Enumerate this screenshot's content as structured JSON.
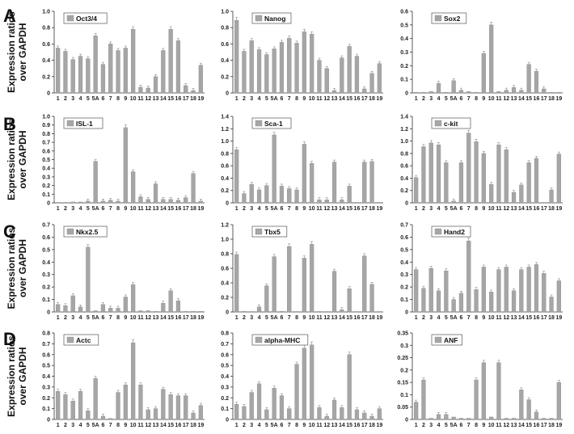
{
  "y_axis_label": [
    "Expression ratios",
    "over GAPDH"
  ],
  "row_letters": [
    "A",
    "B",
    "C",
    "D"
  ],
  "chart_data": [
    {
      "type": "bar",
      "title": "Oct3/4",
      "ylim": [
        0,
        1.0
      ],
      "yticks": [
        "0",
        "0.2",
        "0.4",
        "0.6",
        "0.8",
        "1.0"
      ],
      "categories": [
        "1",
        "2",
        "3",
        "4",
        "5",
        "5A",
        "6",
        "7",
        "8",
        "9",
        "10",
        "11",
        "12",
        "13",
        "14",
        "15",
        "16",
        "17",
        "18",
        "19"
      ],
      "values": [
        0.55,
        0.51,
        0.41,
        0.45,
        0.42,
        0.7,
        0.35,
        0.6,
        0.52,
        0.55,
        0.78,
        0.07,
        0.06,
        0.2,
        0.52,
        0.78,
        0.64,
        0.09,
        0.03,
        0.34
      ]
    },
    {
      "type": "bar",
      "title": "Nanog",
      "ylim": [
        0,
        1.0
      ],
      "yticks": [
        "0",
        "0.2",
        "0.4",
        "0.6",
        "0.8",
        "1.0"
      ],
      "categories": [
        "1",
        "2",
        "3",
        "4",
        "5",
        "5A",
        "6",
        "7",
        "8",
        "9",
        "10",
        "11",
        "12",
        "13",
        "14",
        "15",
        "16",
        "17",
        "18",
        "19"
      ],
      "values": [
        0.89,
        0.51,
        0.64,
        0.53,
        0.47,
        0.54,
        0.62,
        0.67,
        0.61,
        0.75,
        0.72,
        0.4,
        0.3,
        0.03,
        0.43,
        0.57,
        0.45,
        0.05,
        0.24,
        0.36
      ]
    },
    {
      "type": "bar",
      "title": "Sox2",
      "ylim": [
        0,
        0.6
      ],
      "yticks": [
        "0",
        "0.1",
        "0.2",
        "0.3",
        "0.4",
        "0.5",
        "0.6"
      ],
      "categories": [
        "1",
        "2",
        "3",
        "4",
        "5",
        "5A",
        "6",
        "7",
        "8",
        "9",
        "10",
        "11",
        "12",
        "13",
        "14",
        "15",
        "16",
        "17",
        "18",
        "19"
      ],
      "values": [
        0.005,
        0.005,
        0.01,
        0.07,
        0.005,
        0.09,
        0.02,
        0.01,
        0.005,
        0.29,
        0.5,
        0.01,
        0.02,
        0.04,
        0.02,
        0.21,
        0.16,
        0.03,
        0.005,
        0.005
      ]
    },
    {
      "type": "bar",
      "title": "ISL-1",
      "ylim": [
        0,
        1.0
      ],
      "yticks": [
        "0",
        "0.1",
        "0.2",
        "0.3",
        "0.4",
        "0.5",
        "0.6",
        "0.7",
        "0.8",
        "0.9",
        "1.0"
      ],
      "categories": [
        "1",
        "2",
        "3",
        "4",
        "5",
        "5A",
        "6",
        "7",
        "8",
        "9",
        "10",
        "11",
        "12",
        "13",
        "14",
        "15",
        "16",
        "17",
        "18",
        "19"
      ],
      "values": [
        0.005,
        0.005,
        0.01,
        0.01,
        0.02,
        0.48,
        0.02,
        0.03,
        0.02,
        0.87,
        0.36,
        0.07,
        0.04,
        0.22,
        0.04,
        0.04,
        0.03,
        0.06,
        0.34,
        0.02
      ]
    },
    {
      "type": "bar",
      "title": "Sca-1",
      "ylim": [
        0,
        1.4
      ],
      "yticks": [
        "0",
        "0.2",
        "0.4",
        "0.6",
        "0.8",
        "1.0",
        "1.2",
        "1.4"
      ],
      "categories": [
        "1",
        "2",
        "3",
        "4",
        "5",
        "5A",
        "6",
        "7",
        "8",
        "9",
        "10",
        "11",
        "12",
        "13",
        "14",
        "15",
        "16",
        "17",
        "18",
        "19"
      ],
      "values": [
        0.86,
        0.15,
        0.3,
        0.21,
        0.28,
        1.1,
        0.27,
        0.23,
        0.21,
        0.95,
        0.64,
        0.05,
        0.05,
        0.66,
        0.05,
        0.27,
        0.005,
        0.66,
        0.67,
        0.005
      ]
    },
    {
      "type": "bar",
      "title": "c-kit",
      "ylim": [
        0,
        1.4
      ],
      "yticks": [
        "0",
        "0.2",
        "0.4",
        "0.6",
        "0.8",
        "1.0",
        "1.2",
        "1.4"
      ],
      "categories": [
        "1",
        "2",
        "3",
        "4",
        "5",
        "5A",
        "6",
        "7",
        "8",
        "9",
        "10",
        "11",
        "12",
        "13",
        "14",
        "15",
        "16",
        "17",
        "18",
        "19"
      ],
      "values": [
        0.41,
        0.91,
        0.97,
        0.94,
        0.65,
        0.03,
        0.65,
        1.13,
        0.99,
        0.8,
        0.3,
        0.94,
        0.86,
        0.17,
        0.29,
        0.65,
        0.72,
        0.005,
        0.21,
        0.79
      ]
    },
    {
      "type": "bar",
      "title": "Nkx2.5",
      "ylim": [
        0,
        0.7
      ],
      "yticks": [
        "0",
        "0.1",
        "0.2",
        "0.3",
        "0.4",
        "0.5",
        "0.6",
        "0.7"
      ],
      "categories": [
        "1",
        "2",
        "3",
        "4",
        "5",
        "5A",
        "6",
        "7",
        "8",
        "9",
        "10",
        "11",
        "12",
        "13",
        "14",
        "15",
        "16",
        "17",
        "18",
        "19"
      ],
      "values": [
        0.06,
        0.05,
        0.13,
        0.04,
        0.52,
        0.01,
        0.06,
        0.03,
        0.03,
        0.12,
        0.22,
        0.01,
        0.01,
        0.005,
        0.07,
        0.17,
        0.09,
        0.005,
        0.005,
        0.005
      ]
    },
    {
      "type": "bar",
      "title": "Tbx5",
      "ylim": [
        0,
        1.2
      ],
      "yticks": [
        "0",
        "0.2",
        "0.4",
        "0.6",
        "0.8",
        "1.0",
        "1.2"
      ],
      "categories": [
        "1",
        "2",
        "3",
        "4",
        "5",
        "5A",
        "6",
        "7",
        "8",
        "9",
        "10",
        "11",
        "12",
        "13",
        "14",
        "15",
        "16",
        "17",
        "18",
        "19"
      ],
      "values": [
        0.79,
        0.01,
        0.005,
        0.07,
        0.36,
        0.76,
        0.01,
        0.9,
        0.005,
        0.74,
        0.93,
        0.005,
        0.005,
        0.56,
        0.03,
        0.32,
        0.005,
        0.77,
        0.38,
        0.005
      ]
    },
    {
      "type": "bar",
      "title": "Hand2",
      "ylim": [
        0,
        0.7
      ],
      "yticks": [
        "0",
        "0.1",
        "0.2",
        "0.3",
        "0.4",
        "0.5",
        "0.6",
        "0.7"
      ],
      "categories": [
        "1",
        "2",
        "3",
        "4",
        "5",
        "5A",
        "6",
        "7",
        "8",
        "9",
        "10",
        "11",
        "12",
        "13",
        "14",
        "15",
        "16",
        "17",
        "18",
        "19"
      ],
      "values": [
        0.34,
        0.19,
        0.35,
        0.17,
        0.33,
        0.1,
        0.15,
        0.57,
        0.18,
        0.36,
        0.16,
        0.34,
        0.36,
        0.17,
        0.34,
        0.36,
        0.38,
        0.31,
        0.12,
        0.25
      ]
    },
    {
      "type": "bar",
      "title": "Actc",
      "ylim": [
        0,
        0.8
      ],
      "yticks": [
        "0",
        "0.1",
        "0.2",
        "0.3",
        "0.4",
        "0.5",
        "0.6",
        "0.7",
        "0.8"
      ],
      "categories": [
        "1",
        "2",
        "3",
        "4",
        "5",
        "5A",
        "6",
        "7",
        "8",
        "9",
        "10",
        "11",
        "12",
        "13",
        "14",
        "15",
        "16",
        "17",
        "18",
        "19"
      ],
      "values": [
        0.26,
        0.23,
        0.17,
        0.26,
        0.08,
        0.38,
        0.03,
        0.01,
        0.25,
        0.32,
        0.71,
        0.32,
        0.09,
        0.1,
        0.28,
        0.23,
        0.22,
        0.22,
        0.06,
        0.13
      ]
    },
    {
      "type": "bar",
      "title": "alpha-MHC",
      "ylim": [
        0,
        0.8
      ],
      "yticks": [
        "0",
        "0.1",
        "0.2",
        "0.3",
        "0.4",
        "0.5",
        "0.6",
        "0.7",
        "0.8"
      ],
      "categories": [
        "1",
        "2",
        "3",
        "4",
        "5",
        "5A",
        "6",
        "7",
        "8",
        "9",
        "10",
        "11",
        "12",
        "13",
        "14",
        "15",
        "16",
        "17",
        "18",
        "19"
      ],
      "values": [
        0.14,
        0.12,
        0.25,
        0.33,
        0.09,
        0.29,
        0.22,
        0.1,
        0.51,
        0.66,
        0.69,
        0.11,
        0.03,
        0.18,
        0.11,
        0.6,
        0.09,
        0.06,
        0.03,
        0.1
      ]
    },
    {
      "type": "bar",
      "title": "ANF",
      "ylim": [
        0,
        0.35
      ],
      "yticks": [
        "0",
        "0.05",
        "0.1",
        "0.15",
        "0.2",
        "0.25",
        "0.3",
        "0.35"
      ],
      "categories": [
        "1",
        "2",
        "3",
        "4",
        "5",
        "5A",
        "6",
        "7",
        "8",
        "9",
        "10",
        "11",
        "12",
        "13",
        "14",
        "15",
        "16",
        "17",
        "18",
        "19"
      ],
      "values": [
        0.07,
        0.16,
        0.005,
        0.02,
        0.02,
        0.01,
        0.005,
        0.005,
        0.16,
        0.23,
        0.01,
        0.23,
        0.005,
        0.005,
        0.12,
        0.08,
        0.03,
        0.005,
        0.005,
        0.15
      ]
    }
  ]
}
